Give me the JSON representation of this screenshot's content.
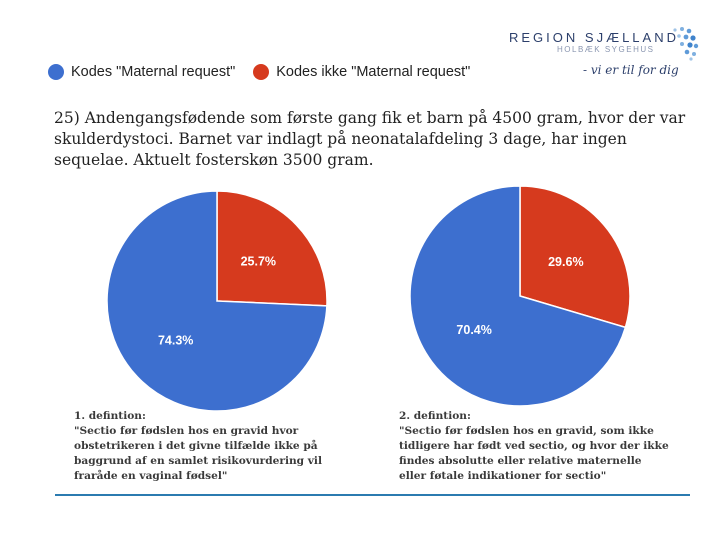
{
  "logo": {
    "title": "REGION SJÆLLAND",
    "subtitle": "HOLBÆK SYGEHUS",
    "slogan": "- vi er til for dig"
  },
  "legend": {
    "items": [
      {
        "label": "Kodes \"Maternal request\"",
        "color": "#3d6fcf"
      },
      {
        "label": "Kodes ikke \"Maternal request\"",
        "color": "#d63a1e"
      }
    ]
  },
  "question": "25) Andengangsfødende som første gang fik et barn på 4500 gram, hvor der var skulderdystoci. Barnet var indlagt på neonatalafdeling 3 dage, har ingen sequelae. Aktuelt fosterskøn 3500 gram.",
  "chart_data": [
    {
      "type": "pie",
      "categories": [
        "Kodes \"Maternal request\"",
        "Kodes ikke \"Maternal request\""
      ],
      "values": [
        74.3,
        25.7
      ],
      "labels": [
        "74.3%",
        "25.7%"
      ],
      "colors": [
        "#3d6fcf",
        "#d63a1e"
      ]
    },
    {
      "type": "pie",
      "categories": [
        "Kodes \"Maternal request\"",
        "Kodes ikke \"Maternal request\""
      ],
      "values": [
        70.4,
        29.6
      ],
      "labels": [
        "70.4%",
        "29.6%"
      ],
      "colors": [
        "#3d6fcf",
        "#d63a1e"
      ]
    }
  ],
  "definitions": [
    {
      "heading": "1. defintion:",
      "lines": [
        "\"Sectio før fødslen hos en gravid hvor",
        "obstetrikeren i det givne tilfælde ikke på",
        "baggrund af en samlet risikovurdering vil",
        "fraråde en vaginal fødsel\""
      ]
    },
    {
      "heading": "2. defintion:",
      "lines": [
        "\"Sectio før fødslen hos en gravid, som ikke",
        "tidligere har født ved sectio, og hvor der ikke",
        "findes absolutte eller relative maternelle",
        "eller føtale indikationer for sectio\""
      ]
    }
  ]
}
